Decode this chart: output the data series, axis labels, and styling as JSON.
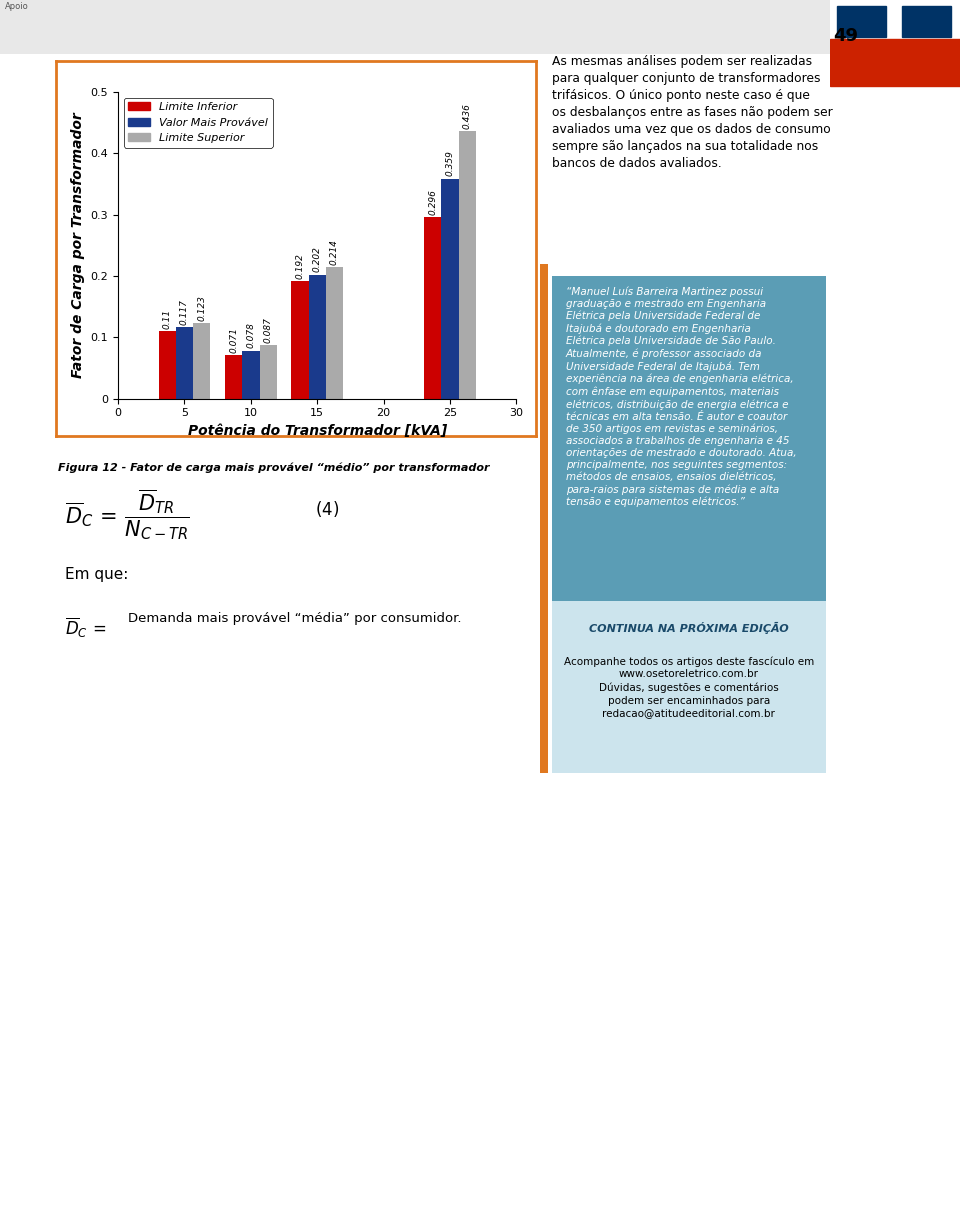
{
  "categories": [
    5,
    10,
    15,
    25
  ],
  "limite_inferior": [
    0.11,
    0.071,
    0.192,
    0.296
  ],
  "valor_mais_provavel": [
    0.117,
    0.078,
    0.202,
    0.359
  ],
  "limite_superior": [
    0.123,
    0.087,
    0.214,
    0.436
  ],
  "color_limite_inferior": "#cc0000",
  "color_valor_mais_provavel": "#1a3a8c",
  "color_limite_superior": "#aaaaaa",
  "bar_width": 1.3,
  "xlim": [
    0,
    30
  ],
  "ylim": [
    0,
    0.5
  ],
  "xlabel": "Potência do Transformador [kVA]",
  "ylabel": "Fator de Carga por Transformador",
  "xticks": [
    0,
    5,
    10,
    15,
    20,
    25,
    30
  ],
  "yticks": [
    0,
    0.1,
    0.2,
    0.3,
    0.4,
    0.5
  ],
  "legend_labels": [
    "Limite Inferior",
    "Valor Mais Provável",
    "Limite Superior"
  ],
  "figure_caption": "Figura 12 - Fator de carga mais provável “médio” por transformador",
  "background_color": "#ffffff",
  "border_color": "#e07820",
  "tick_fontsize": 8,
  "axis_label_fontsize": 10,
  "legend_fontsize": 8,
  "right_text": "As mesmas análises podem ser realizadas para qualquer conjunto de transformadores trifásicos. O único ponto neste caso é que os desbalanços entre as fases não podem ser avaliados uma vez que os dados de consumo sempre são lançados na sua totalidade nos bancos de dados avaliados.",
  "quote_text": "“Manuel Luís Barreira Martinez possui graduação e mestrado em Engenharia Elétrica pela Universidade Federal de Itajubá e doutorado em Engenharia Elétrica pela Universidade de São Paulo. Atualmente, é professor associado da Universidade Federal de Itajubá. Tem experiência na área de engenharia elétrica, com ênfase em equipamentos, materiais elétricos, distribuição de energia elétrica e técnicas em alta tensão. É autor e coautor de 350 artigos em revistas e seminários, associados a trabalhos de engenharia e 45 orientações de mestrado e doutorado. Atua, principalmente, nos seguintes segmentos: métodos de ensaios, ensaios dielétricos, para-raios para sistemas de média e alta tensão e equipamentos elétricos.”",
  "continua_title": "CONTINUA NA PRÓXIMA EDIÇÃO",
  "continua_text": "Acompanhe todos os artigos deste fascículo em\nwww.osetoreletrico.com.br\nDúvidas, sugestões e comentários\npodem ser encaminhados para\nredacao@atitudeeditorial.com.br",
  "quote_bg_color": "#5b9db5",
  "continua_bg_color": "#cce4ed",
  "page_number": "49",
  "header_bg": "#f0f0f0",
  "sidebar_color1": "#cc2200",
  "sidebar_color2": "#336699"
}
